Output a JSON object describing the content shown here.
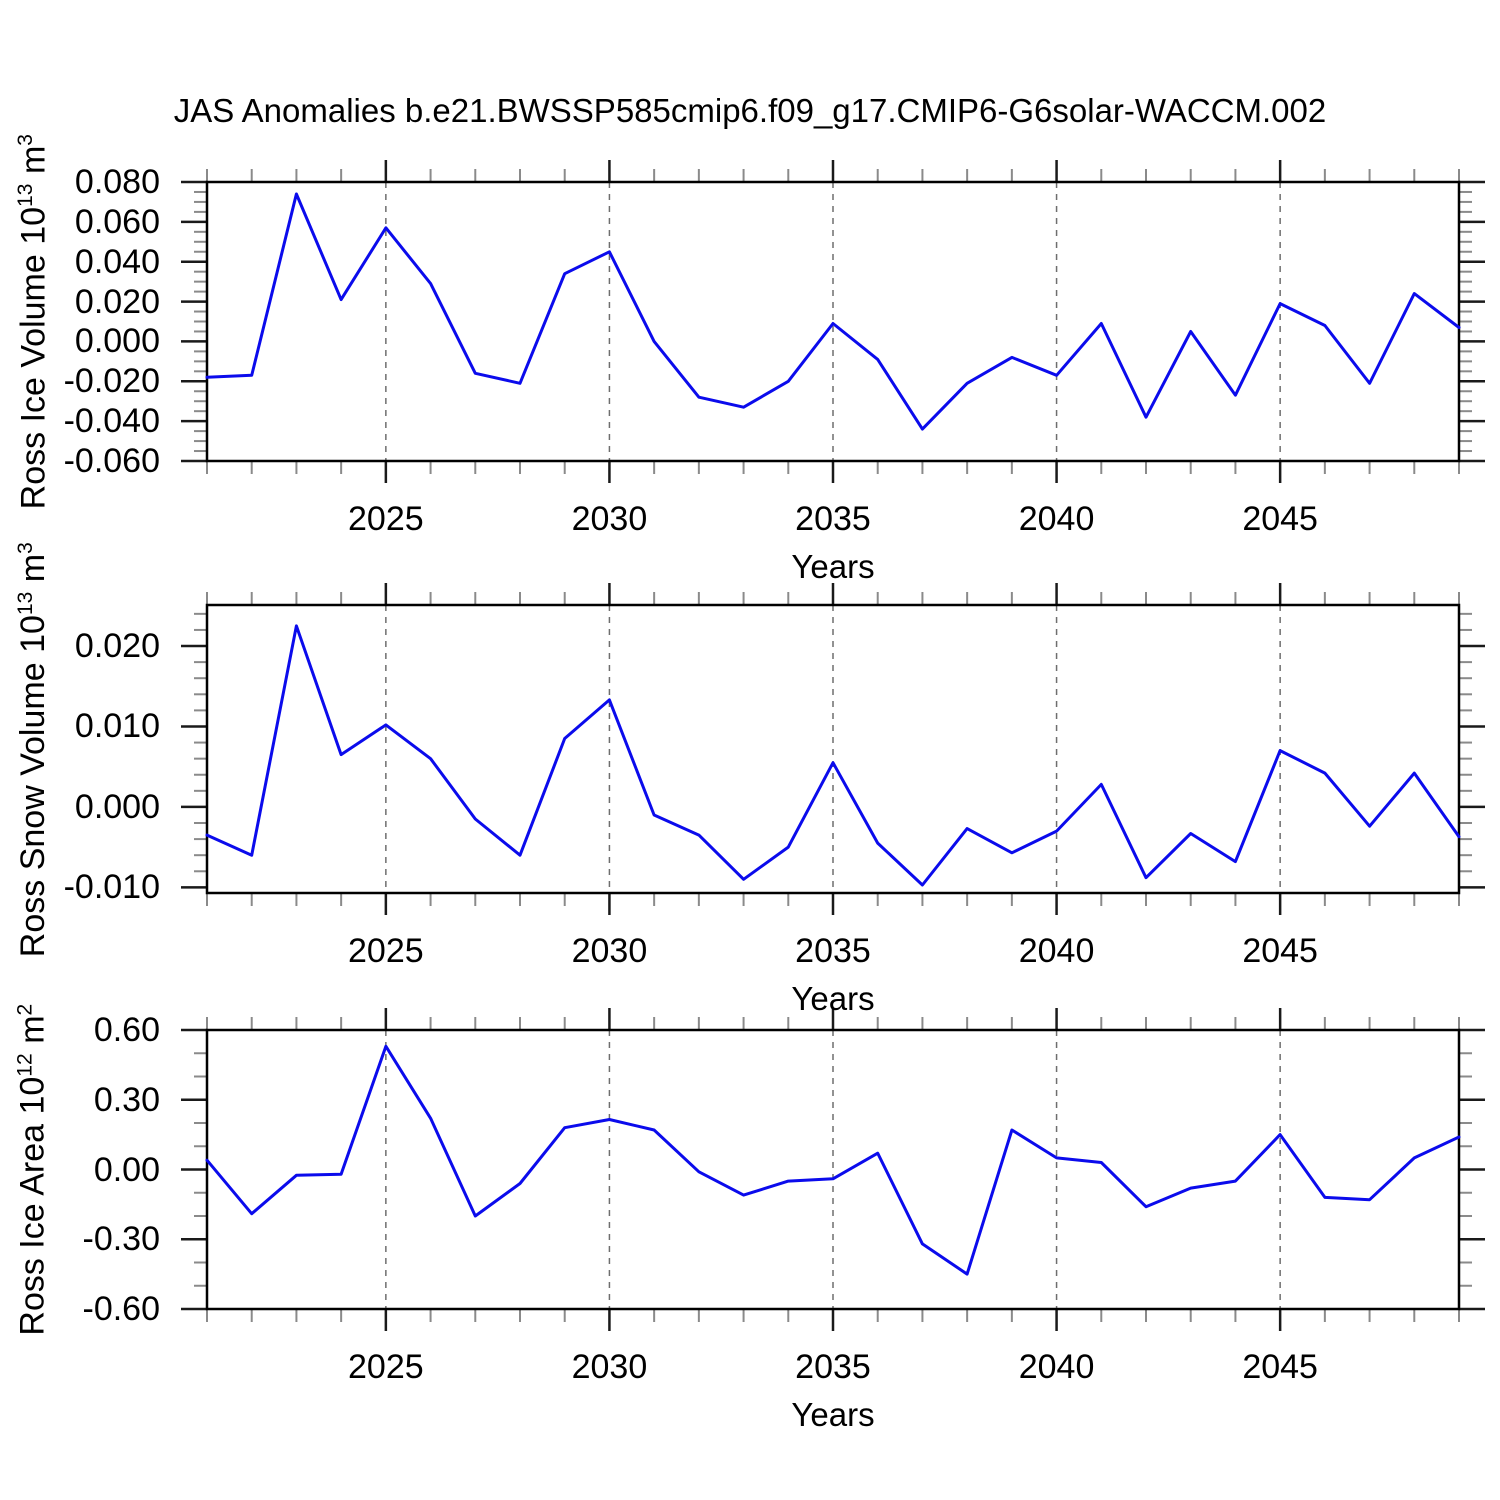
{
  "title": "JAS Anomalies b.e21.BWSSP585cmip6.f09_g17.CMIP6-G6solar-WACCM.002",
  "colors": {
    "background": "#ffffff",
    "line": "#0b0bec",
    "frame": "#000000",
    "major_tick": "#1a1a1a",
    "minor_tick": "#8a8a8a",
    "grid": "#6e6e6e",
    "text": "#000000"
  },
  "chart_data": [
    {
      "id": "ross-ice-volume",
      "type": "line",
      "ylabel": "Ross Ice Volume 10^{13} m^{3}",
      "xlabel": "Years",
      "x": [
        2021,
        2022,
        2023,
        2024,
        2025,
        2026,
        2027,
        2028,
        2029,
        2030,
        2031,
        2032,
        2033,
        2034,
        2035,
        2036,
        2037,
        2038,
        2039,
        2040,
        2041,
        2042,
        2043,
        2044,
        2045,
        2046,
        2047,
        2048,
        2049
      ],
      "values": [
        -0.018,
        -0.017,
        0.074,
        0.021,
        0.057,
        0.029,
        -0.016,
        -0.021,
        0.034,
        0.045,
        0.0,
        -0.028,
        -0.033,
        -0.02,
        0.009,
        -0.009,
        -0.044,
        -0.021,
        -0.008,
        -0.017,
        0.009,
        -0.038,
        0.005,
        -0.027,
        0.019,
        0.008,
        -0.021,
        0.024,
        0.007
      ],
      "ylim": [
        -0.06,
        0.08
      ],
      "ytick_values": [
        -0.06,
        -0.04,
        -0.02,
        0.0,
        0.02,
        0.04,
        0.06,
        0.08
      ],
      "ytick_labels": [
        "-0.060",
        "-0.040",
        "-0.020",
        "0.000",
        "0.020",
        "0.040",
        "0.060",
        "0.080"
      ],
      "ytick_minor_step": 0.005,
      "xlim": [
        2021,
        2049
      ],
      "xtick_major_values": [
        2025,
        2030,
        2035,
        2040,
        2045
      ],
      "xtick_major_labels": [
        "2025",
        "2030",
        "2035",
        "2040",
        "2045"
      ],
      "xtick_minor_step": 1,
      "grid": "vertical-dashed-at-major-xticks",
      "legend": "none"
    },
    {
      "id": "ross-snow-volume",
      "type": "line",
      "ylabel": "Ross Snow Volume 10^{13} m^{3}",
      "xlabel": "Years",
      "x": [
        2021,
        2022,
        2023,
        2024,
        2025,
        2026,
        2027,
        2028,
        2029,
        2030,
        2031,
        2032,
        2033,
        2034,
        2035,
        2036,
        2037,
        2038,
        2039,
        2040,
        2041,
        2042,
        2043,
        2044,
        2045,
        2046,
        2047,
        2048,
        2049
      ],
      "values": [
        -0.0035,
        -0.006,
        0.0225,
        0.0065,
        0.0102,
        0.006,
        -0.0015,
        -0.006,
        0.0085,
        0.0133,
        -0.001,
        -0.0035,
        -0.009,
        -0.005,
        0.0055,
        -0.0045,
        -0.0097,
        -0.0027,
        -0.0057,
        -0.003,
        0.0028,
        -0.0088,
        -0.0033,
        -0.0068,
        0.007,
        0.0042,
        -0.0024,
        0.0042,
        -0.0037
      ],
      "ylim": [
        -0.0107,
        0.0251
      ],
      "ytick_values": [
        -0.01,
        0.0,
        0.01,
        0.02
      ],
      "ytick_labels": [
        "-0.010",
        "0.000",
        "0.010",
        "0.020"
      ],
      "ytick_minor_step": 0.002,
      "xlim": [
        2021,
        2049
      ],
      "xtick_major_values": [
        2025,
        2030,
        2035,
        2040,
        2045
      ],
      "xtick_major_labels": [
        "2025",
        "2030",
        "2035",
        "2040",
        "2045"
      ],
      "xtick_minor_step": 1,
      "grid": "vertical-dashed-at-major-xticks",
      "legend": "none"
    },
    {
      "id": "ross-ice-area",
      "type": "line",
      "ylabel": "Ross Ice Area 10^{12} m^{2}",
      "xlabel": "Years",
      "x": [
        2021,
        2022,
        2023,
        2024,
        2025,
        2026,
        2027,
        2028,
        2029,
        2030,
        2031,
        2032,
        2033,
        2034,
        2035,
        2036,
        2037,
        2038,
        2039,
        2040,
        2041,
        2042,
        2043,
        2044,
        2045,
        2046,
        2047,
        2048,
        2049
      ],
      "values": [
        0.04,
        -0.19,
        -0.025,
        -0.02,
        0.53,
        0.22,
        -0.2,
        -0.06,
        0.18,
        0.215,
        0.17,
        -0.01,
        -0.11,
        -0.05,
        -0.04,
        0.07,
        -0.32,
        -0.45,
        0.17,
        0.05,
        0.03,
        -0.16,
        -0.08,
        -0.05,
        0.15,
        -0.12,
        -0.13,
        0.05,
        0.14
      ],
      "ylim": [
        -0.6,
        0.6
      ],
      "ytick_values": [
        -0.6,
        -0.3,
        0.0,
        0.3,
        0.6
      ],
      "ytick_labels": [
        "-0.60",
        "-0.30",
        "0.00",
        "0.30",
        "0.60"
      ],
      "ytick_minor_step": 0.1,
      "xlim": [
        2021,
        2049
      ],
      "xtick_major_values": [
        2025,
        2030,
        2035,
        2040,
        2045
      ],
      "xtick_major_labels": [
        "2025",
        "2030",
        "2035",
        "2040",
        "2045"
      ],
      "xtick_minor_step": 1,
      "grid": "vertical-dashed-at-major-xticks",
      "legend": "none"
    }
  ]
}
